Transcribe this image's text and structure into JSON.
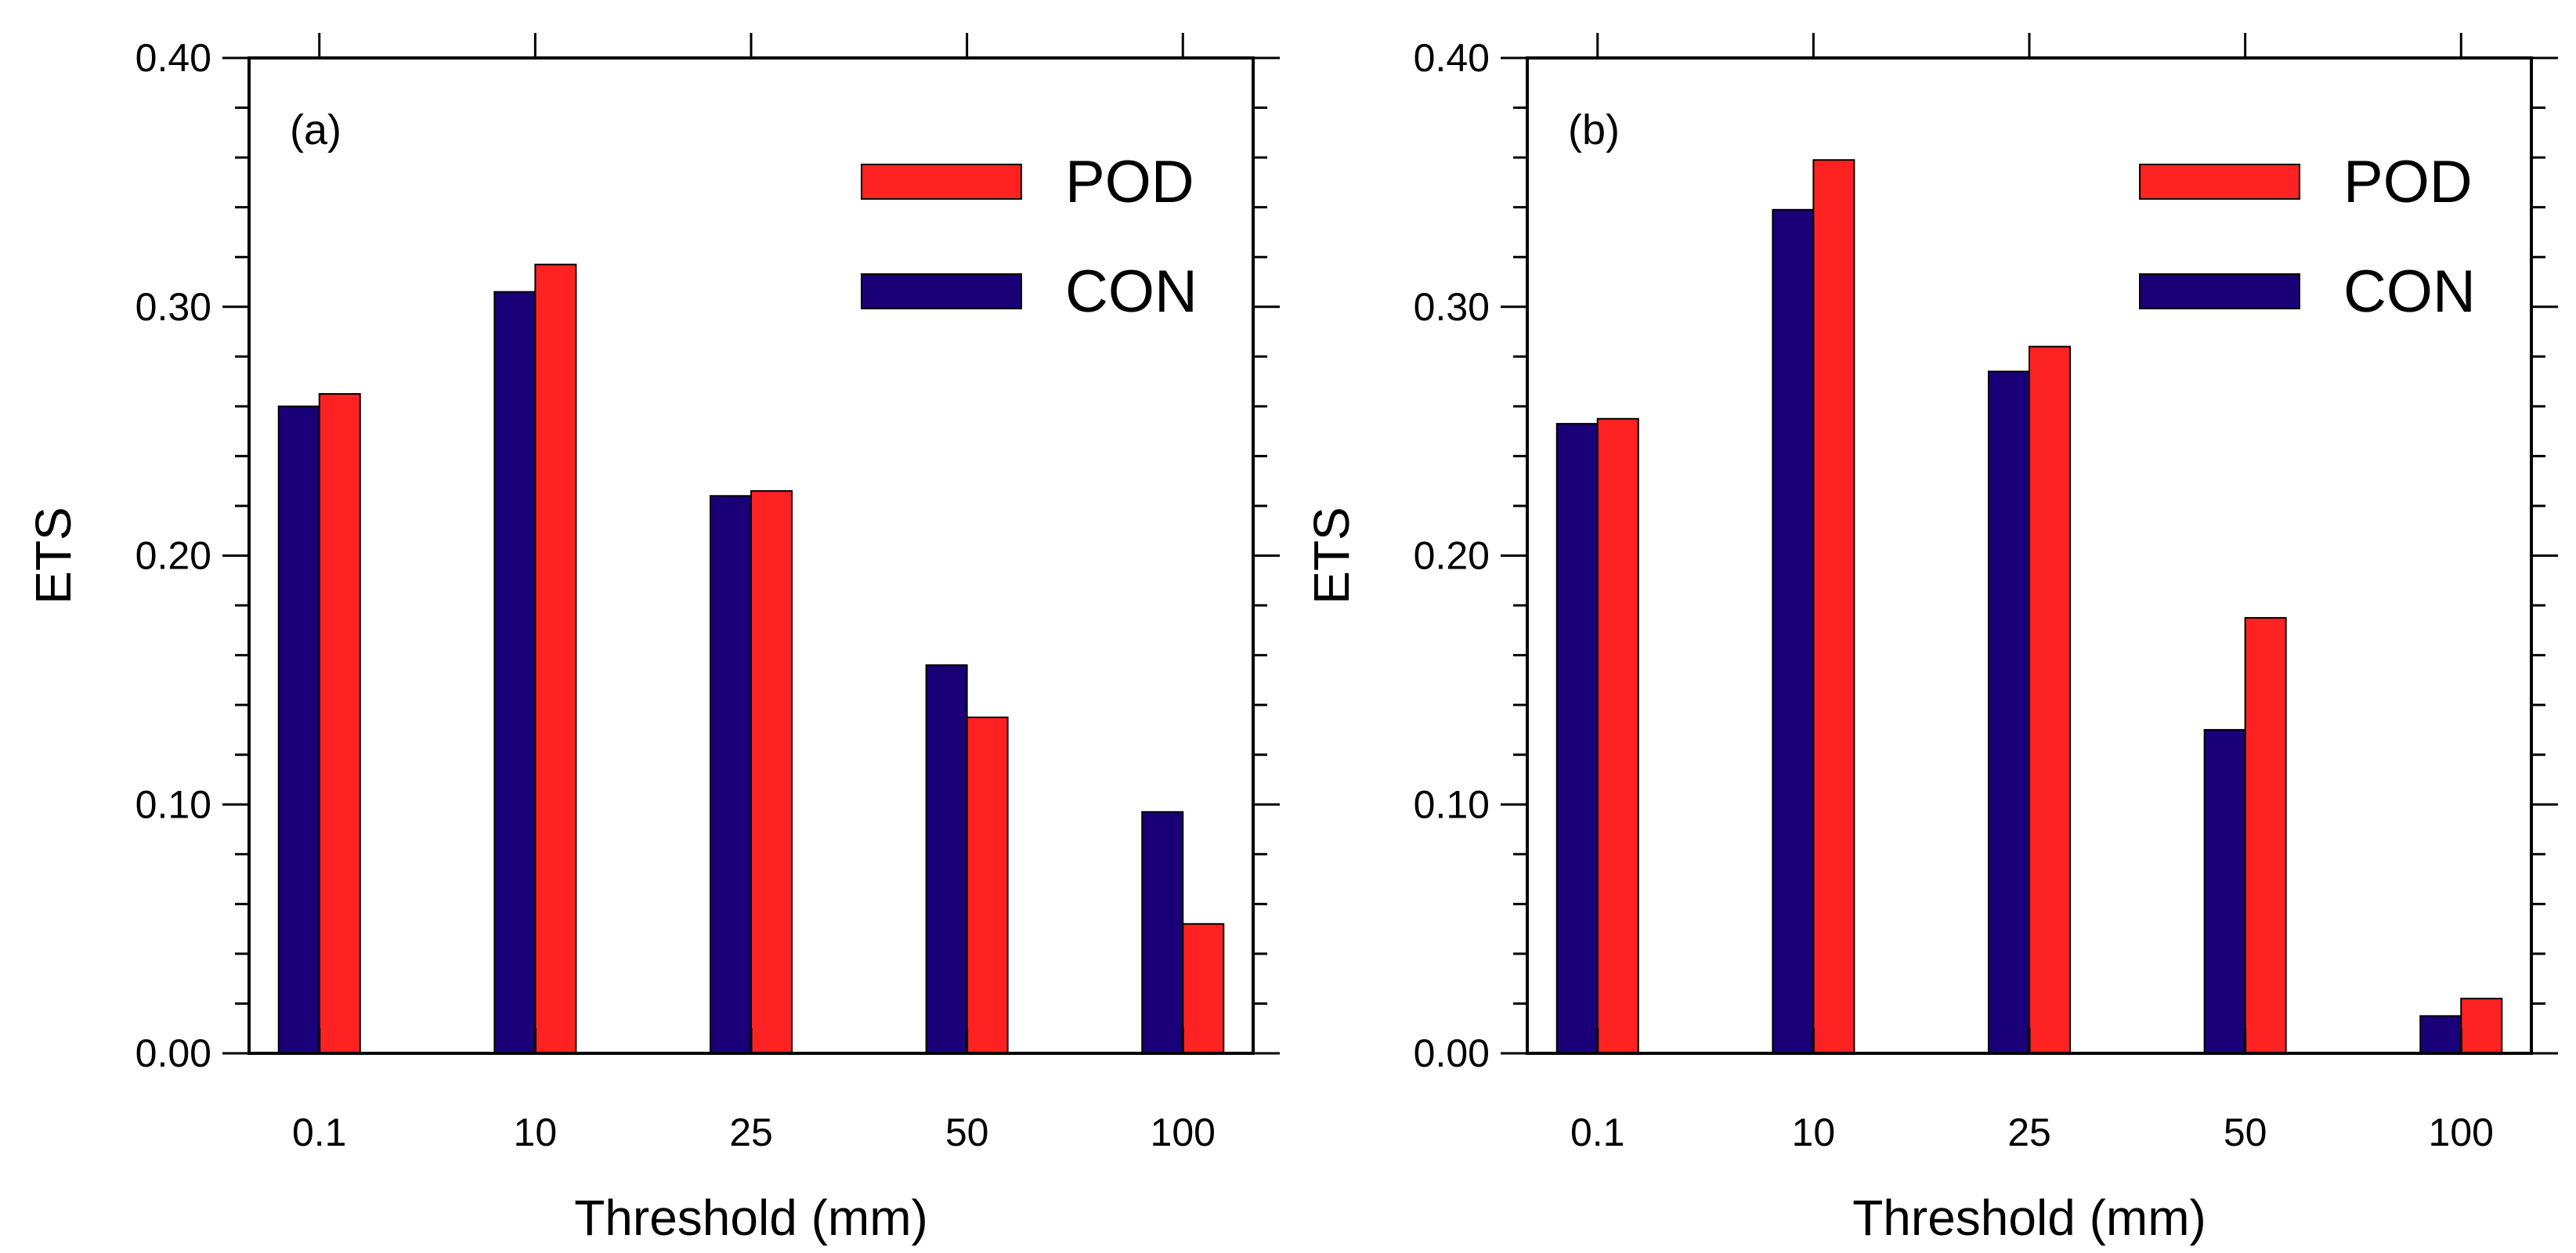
{
  "chart_data": [
    {
      "panel": "a",
      "type": "bar",
      "panel_label": "(a)",
      "xlabel": "Threshold (mm)",
      "ylabel": "ETS",
      "ylim": [
        0,
        0.4
      ],
      "yticks": [
        "0.00",
        "0.10",
        "0.20",
        "0.30",
        "0.40"
      ],
      "categories": [
        "0.1",
        "10",
        "25",
        "50",
        "100"
      ],
      "series": [
        {
          "name": "CON",
          "color": "#1a0078",
          "values": [
            0.26,
            0.306,
            0.224,
            0.156,
            0.097
          ]
        },
        {
          "name": "POD",
          "color": "#ff2222",
          "values": [
            0.265,
            0.317,
            0.226,
            0.135,
            0.052
          ]
        }
      ],
      "legend": {
        "position": "top-right",
        "entries": [
          "POD",
          "CON"
        ]
      }
    },
    {
      "panel": "b",
      "type": "bar",
      "panel_label": "(b)",
      "xlabel": "Threshold (mm)",
      "ylabel": "ETS",
      "ylim": [
        0,
        0.4
      ],
      "yticks": [
        "0.00",
        "0.10",
        "0.20",
        "0.30",
        "0.40"
      ],
      "categories": [
        "0.1",
        "10",
        "25",
        "50",
        "100"
      ],
      "series": [
        {
          "name": "CON",
          "color": "#1a0078",
          "values": [
            0.253,
            0.339,
            0.274,
            0.13,
            0.015
          ]
        },
        {
          "name": "POD",
          "color": "#ff2222",
          "values": [
            0.255,
            0.359,
            0.284,
            0.175,
            0.022
          ]
        }
      ],
      "legend": {
        "position": "top-right",
        "entries": [
          "POD",
          "CON"
        ]
      }
    }
  ]
}
